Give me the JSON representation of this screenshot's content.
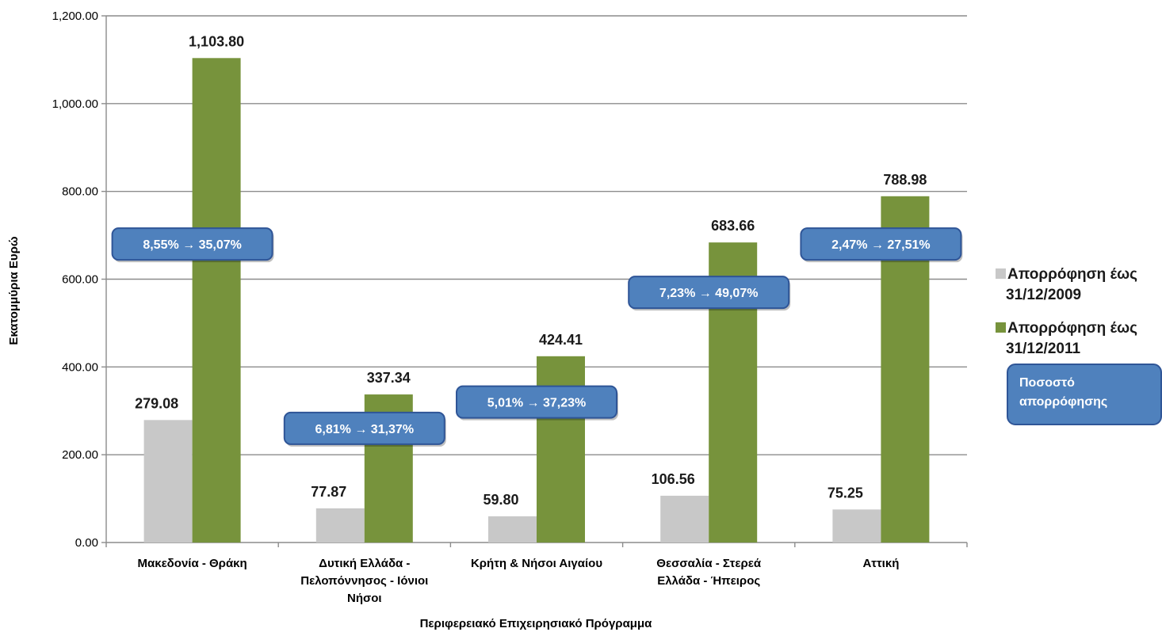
{
  "chart_data": {
    "type": "bar",
    "categories": [
      [
        "Μακεδονία - Θράκη"
      ],
      [
        "Δυτική Ελλάδα -",
        "Πελοπόννησος - Ιόνιοι",
        "Νήσοι"
      ],
      [
        "Κρήτη & Νήσοι Αιγαίου"
      ],
      [
        "Θεσσαλία - Στερεά",
        "Ελλάδα - Ήπειρος"
      ],
      [
        "Αττική"
      ]
    ],
    "series": [
      {
        "name": "Απορρόφηση έως 31/12/2009",
        "name_lines": [
          "Απορρόφηση έως",
          "31/12/2009"
        ],
        "color": "#c8c8c8",
        "values": [
          279.08,
          77.87,
          59.8,
          106.56,
          75.25
        ],
        "labels": [
          "279.08",
          "77.87",
          "59.80",
          "106.56",
          "75.25"
        ]
      },
      {
        "name": "Απορρόφηση έως 31/12/2011",
        "name_lines": [
          "Απορρόφηση έως",
          "31/12/2011"
        ],
        "color": "#77933c",
        "values": [
          1103.8,
          337.34,
          424.41,
          683.66,
          788.98
        ],
        "labels": [
          "1,103.80",
          "337.34",
          "424.41",
          "683.66",
          "788.98"
        ]
      }
    ],
    "callouts": [
      {
        "text": "8,55% → 35,07%",
        "y": 680
      },
      {
        "text": "6,81% → 31,37%",
        "y": 260
      },
      {
        "text": "5,01% → 37,23%",
        "y": 320
      },
      {
        "text": "7,23% → 49,07%",
        "y": 570
      },
      {
        "text": "2,47% → 27,51%",
        "y": 680
      }
    ],
    "callout_color": "#4f81bd",
    "legend_callout_lines": [
      "Ποσοστό",
      "απορρόφησης"
    ],
    "ylabel": "Εκατομμύρια Ευρώ",
    "xlabel": "Περιφερειακό Επιχειρησιακό Πρόγραμμα",
    "ylim": [
      0,
      1200
    ],
    "yticks": [
      "0.00",
      "200.00",
      "400.00",
      "600.00",
      "800.00",
      "1,000.00",
      "1,200.00"
    ],
    "ytick_values": [
      0,
      200,
      400,
      600,
      800,
      1000,
      1200
    ],
    "grid": true,
    "legend_position": "right"
  }
}
